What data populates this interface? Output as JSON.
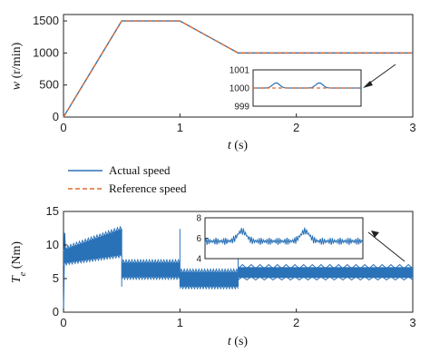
{
  "colors": {
    "actual": "#2a72b8",
    "reference": "#e06b2f",
    "axis": "#222222"
  },
  "chart_data": [
    {
      "id": "speed",
      "type": "line",
      "xlabel_var": "t",
      "xlabel_unit": "(s)",
      "ylabel_var": "w",
      "ylabel_unit": "(r/min)",
      "xlim": [
        0,
        3
      ],
      "ylim": [
        0,
        1600
      ],
      "xticks": [
        "0",
        "1",
        "2",
        "3"
      ],
      "yticks": [
        "0",
        "500",
        "1000",
        "1500"
      ],
      "grid": false,
      "series": [
        {
          "name": "Actual speed",
          "style": "solid",
          "x": [
            0,
            0.5,
            1.0,
            1.5,
            3.0
          ],
          "y": [
            0,
            1500,
            1500,
            1000,
            1000
          ]
        },
        {
          "name": "Reference speed",
          "style": "dashed",
          "x": [
            0,
            0.5,
            1.0,
            1.5,
            3.0
          ],
          "y": [
            0,
            1500,
            1500,
            1000,
            1000
          ]
        }
      ],
      "inset": {
        "yticks": [
          "999",
          "1000",
          "1001"
        ],
        "ylim": [
          999,
          1001
        ],
        "xlim": [
          1.5,
          3.0
        ]
      }
    },
    {
      "id": "torque",
      "type": "line",
      "xlabel_var": "t",
      "xlabel_unit": "(s)",
      "ylabel_var": "T",
      "ylabel_sub": "e",
      "ylabel_unit": "(Nm)",
      "xlim": [
        0,
        3
      ],
      "ylim": [
        0,
        15
      ],
      "xticks": [
        "0",
        "1",
        "2",
        "3"
      ],
      "yticks": [
        "0",
        "5",
        "10",
        "15"
      ],
      "grid": false,
      "series": [
        {
          "name": "Te",
          "band_segments": [
            {
              "x0": 0.0,
              "x1": 0.5,
              "low0": 7.3,
              "low1": 8.5,
              "high0": 9.3,
              "high1": 12.4
            },
            {
              "x0": 0.5,
              "x1": 1.0,
              "low0": 5.2,
              "low1": 5.2,
              "high0": 7.4,
              "high1": 7.4
            },
            {
              "x0": 1.0,
              "x1": 1.5,
              "low0": 3.8,
              "low1": 3.8,
              "high0": 6.0,
              "high1": 6.0
            },
            {
              "x0": 1.5,
              "x1": 3.0,
              "low0": 5.1,
              "low1": 5.1,
              "high0": 6.7,
              "high1": 6.7
            }
          ]
        }
      ],
      "inset": {
        "yticks": [
          "4",
          "6",
          "8"
        ],
        "ylim": [
          4,
          8
        ],
        "xlim": [
          1.5,
          3.0
        ]
      }
    }
  ],
  "legend": [
    {
      "label": "Actual speed",
      "style": "solid"
    },
    {
      "label": "Reference speed",
      "style": "dashed"
    }
  ]
}
